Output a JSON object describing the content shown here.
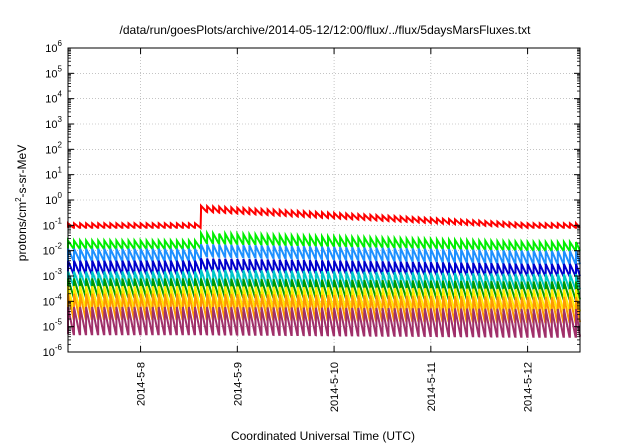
{
  "chart_data": {
    "type": "line",
    "title": "/data/run/goesPlots/archive/2014-05-12/12:00/flux/../flux/5daysMarsFluxes.txt",
    "xlabel": "Coordinated Universal Time (UTC)",
    "ylabel": "protons/cm2-s-sr-MeV",
    "ylabel_parts": [
      "protons/cm",
      "2",
      "-s-sr-MeV"
    ],
    "yscale": "log",
    "ylim": [
      1e-06,
      1000000.0
    ],
    "xlim": [
      "2014-05-07 06:00",
      "2014-05-12 13:00"
    ],
    "grid": true,
    "legend": "none",
    "x_ticks": [
      "2014-5-8",
      "2014-5-9",
      "2014-5-10",
      "2014-5-11",
      "2014-5-12"
    ],
    "x_tick_dates": [
      "2014-05-08",
      "2014-05-09",
      "2014-05-10",
      "2014-05-11",
      "2014-05-12"
    ],
    "y_ticks": [
      {
        "base": "10",
        "exp": "-6"
      },
      {
        "base": "10",
        "exp": "-5"
      },
      {
        "base": "10",
        "exp": "-4"
      },
      {
        "base": "10",
        "exp": "-3"
      },
      {
        "base": "10",
        "exp": "-2"
      },
      {
        "base": "10",
        "exp": "-1"
      },
      {
        "base": "10",
        "exp": "0"
      },
      {
        "base": "10",
        "exp": "1"
      },
      {
        "base": "10",
        "exp": "2"
      },
      {
        "base": "10",
        "exp": "3"
      },
      {
        "base": "10",
        "exp": "4"
      },
      {
        "base": "10",
        "exp": "5"
      },
      {
        "base": "10",
        "exp": "6"
      }
    ],
    "series": [
      {
        "color": "#ff0000",
        "peak_before": 0.12,
        "drop_before": 0.08,
        "peak_after": 0.6,
        "drop_after": 0.35,
        "peak_end": 0.12,
        "drop_end": 0.08
      },
      {
        "color": "#00ee00",
        "peak_before": 0.025,
        "drop_before": 0.012,
        "peak_after": 0.05,
        "drop_after": 0.02,
        "peak_end": 0.022,
        "drop_end": 0.01
      },
      {
        "color": "#1e90ff",
        "peak_before": 0.012,
        "drop_before": 0.004,
        "peak_after": 0.018,
        "drop_after": 0.006,
        "peak_end": 0.01,
        "drop_end": 0.003
      },
      {
        "color": "#0000cc",
        "peak_before": 0.004,
        "drop_before": 0.0012,
        "peak_after": 0.005,
        "drop_after": 0.0015,
        "peak_end": 0.003,
        "drop_end": 0.001
      },
      {
        "color": "#00c8c8",
        "peak_before": 0.0015,
        "drop_before": 0.0004,
        "peak_after": 0.0018,
        "drop_after": 0.0004,
        "peak_end": 0.0012,
        "drop_end": 0.0003
      },
      {
        "color": "#009900",
        "peak_before": 0.0008,
        "drop_before": 0.00015,
        "peak_after": 0.0008,
        "drop_after": 0.00015,
        "peak_end": 0.0006,
        "drop_end": 0.00012
      },
      {
        "color": "#ffee00",
        "peak_before": 0.0004,
        "drop_before": 5e-05,
        "peak_after": 0.0004,
        "drop_after": 5e-05,
        "peak_end": 0.0003,
        "drop_end": 4e-05
      },
      {
        "color": "#ff9900",
        "peak_before": 0.0002,
        "drop_before": 2e-05,
        "peak_after": 0.0002,
        "drop_after": 2e-05,
        "peak_end": 0.00015,
        "drop_end": 1.5e-05
      },
      {
        "color": "#a0306a",
        "peak_before": 6e-05,
        "drop_before": 5e-06,
        "peak_after": 6e-05,
        "drop_after": 5e-06,
        "peak_end": 5e-05,
        "drop_end": 4e-06
      }
    ],
    "event_time": "2014-05-08 14:00"
  }
}
